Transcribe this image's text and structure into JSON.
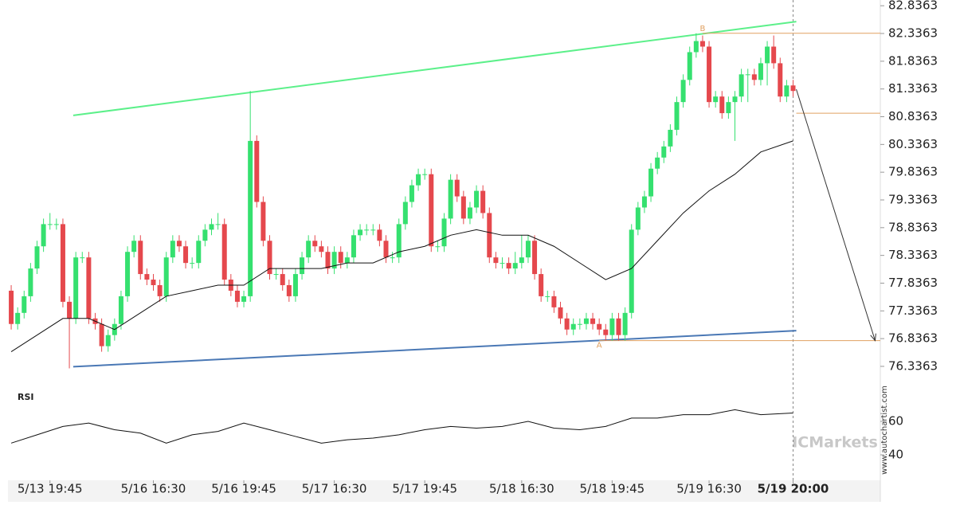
{
  "chart_data": {
    "type": "candlestick",
    "colors": {
      "up": "#35e06f",
      "down": "#e5484d",
      "ma": "#111111",
      "rsi": "#111111",
      "upper": "#5cf08a",
      "lower": "#4a78b5",
      "level": "#e0a060",
      "arrow": "#333333"
    },
    "ylim": [
      76.12,
      82.94
    ],
    "yticks": [
      82.8363,
      82.3363,
      81.8363,
      81.3363,
      80.8363,
      80.3363,
      79.8363,
      79.3363,
      78.8363,
      78.3363,
      77.8363,
      77.3363,
      76.8363,
      76.3363
    ],
    "xlim": [
      -0.5,
      134.5
    ],
    "xlabels": [
      {
        "index": 6,
        "label": "5/13 19:45"
      },
      {
        "index": 22,
        "label": "5/16 16:30"
      },
      {
        "index": 36,
        "label": "5/16 19:45"
      },
      {
        "index": 50,
        "label": "5/17 16:30"
      },
      {
        "index": 64,
        "label": "5/17 19:45"
      },
      {
        "index": 79,
        "label": "5/18 16:30"
      },
      {
        "index": 93,
        "label": "5/18 19:45"
      },
      {
        "index": 108,
        "label": "5/19 16:30"
      },
      {
        "index": 121,
        "label": "5/19 20:00"
      }
    ],
    "open": [
      77.7,
      77.1,
      77.3,
      77.6,
      78.1,
      78.5,
      78.9,
      78.9,
      78.9,
      77.5,
      77.2,
      78.3,
      78.3,
      77.2,
      77.1,
      76.7,
      76.9,
      77.1,
      77.6,
      78.4,
      78.6,
      78.0,
      77.9,
      77.8,
      77.6,
      78.3,
      78.6,
      78.5,
      78.2,
      78.2,
      78.6,
      78.8,
      78.9,
      78.9,
      77.9,
      77.7,
      77.5,
      77.6,
      80.4,
      79.3,
      78.6,
      78.0,
      78.0,
      77.8,
      77.6,
      78.0,
      78.3,
      78.6,
      78.5,
      78.4,
      78.1,
      78.4,
      78.2,
      78.3,
      78.7,
      78.8,
      78.8,
      78.8,
      78.6,
      78.3,
      78.3,
      78.9,
      79.3,
      79.6,
      79.8,
      79.8,
      78.5,
      78.5,
      79.0,
      79.7,
      79.4,
      79.0,
      79.2,
      79.5,
      79.1,
      78.3,
      78.2,
      78.2,
      78.1,
      78.2,
      78.3,
      78.6,
      78.0,
      77.6,
      77.6,
      77.4,
      77.2,
      77.0,
      77.1,
      77.1,
      77.2,
      77.1,
      77.0,
      76.9,
      77.2,
      76.9,
      77.3,
      78.8,
      79.2,
      79.4,
      79.9,
      80.1,
      80.3,
      80.6,
      81.1,
      81.5,
      82.0,
      82.2,
      82.1,
      81.1,
      81.2,
      80.9,
      81.1,
      81.2,
      81.6,
      81.6,
      81.5,
      81.8,
      82.1,
      81.8,
      81.2,
      81.4
    ],
    "high": [
      77.8,
      77.4,
      77.7,
      78.2,
      78.6,
      79.0,
      79.1,
      79.0,
      79.0,
      77.6,
      78.4,
      78.4,
      78.4,
      77.3,
      77.2,
      77.0,
      77.2,
      77.7,
      78.5,
      78.7,
      78.7,
      78.1,
      78.0,
      77.9,
      78.4,
      78.7,
      78.7,
      78.6,
      78.3,
      78.7,
      78.9,
      79.0,
      79.1,
      79.0,
      78.0,
      77.8,
      77.7,
      81.3,
      80.5,
      79.4,
      78.7,
      78.1,
      78.1,
      77.9,
      78.1,
      78.4,
      78.7,
      78.7,
      78.6,
      78.5,
      78.5,
      78.5,
      78.4,
      78.8,
      78.9,
      78.9,
      78.9,
      78.9,
      78.7,
      78.4,
      79.0,
      79.4,
      79.7,
      79.9,
      79.9,
      79.9,
      78.6,
      79.1,
      79.8,
      79.8,
      79.5,
      79.3,
      79.6,
      79.6,
      79.2,
      78.4,
      78.3,
      78.3,
      78.4,
      78.7,
      78.7,
      78.7,
      78.1,
      77.7,
      77.7,
      77.5,
      77.3,
      77.2,
      77.2,
      77.3,
      77.3,
      77.2,
      77.1,
      77.3,
      77.3,
      77.4,
      78.9,
      79.3,
      79.5,
      80.0,
      80.2,
      80.4,
      80.7,
      81.2,
      81.6,
      82.1,
      82.34,
      82.3,
      82.2,
      81.3,
      81.3,
      81.2,
      81.3,
      81.7,
      81.7,
      81.7,
      81.9,
      82.2,
      82.3,
      81.9,
      81.5,
      81.5
    ],
    "low": [
      77.0,
      77.0,
      77.2,
      77.5,
      78.0,
      78.4,
      78.8,
      78.8,
      77.4,
      76.3,
      77.1,
      78.2,
      77.1,
      77.0,
      76.6,
      76.6,
      76.8,
      77.0,
      77.5,
      78.3,
      77.9,
      77.8,
      77.7,
      77.5,
      77.5,
      78.2,
      78.4,
      78.1,
      78.1,
      78.1,
      78.5,
      78.7,
      78.8,
      77.8,
      77.6,
      77.4,
      77.4,
      77.5,
      79.2,
      78.5,
      77.9,
      77.9,
      77.7,
      77.5,
      77.5,
      77.9,
      78.2,
      78.4,
      78.3,
      78.0,
      78.0,
      78.1,
      78.1,
      78.2,
      78.6,
      78.7,
      78.7,
      78.5,
      78.2,
      78.2,
      78.2,
      78.8,
      79.2,
      79.5,
      79.7,
      78.4,
      78.4,
      78.4,
      78.9,
      79.3,
      78.9,
      78.9,
      79.1,
      79.0,
      78.2,
      78.1,
      78.1,
      78.0,
      78.0,
      78.1,
      78.2,
      77.9,
      77.5,
      77.5,
      77.3,
      77.1,
      76.9,
      76.9,
      77.0,
      77.0,
      77.0,
      76.9,
      76.8,
      76.8,
      76.8,
      76.8,
      77.2,
      78.7,
      79.1,
      79.3,
      79.8,
      80.0,
      80.2,
      80.5,
      81.0,
      81.4,
      81.9,
      82.0,
      81.0,
      81.0,
      80.8,
      80.8,
      80.4,
      81.1,
      81.1,
      81.4,
      81.4,
      81.4,
      81.7,
      81.1,
      81.1,
      81.2
    ],
    "close": [
      77.1,
      77.3,
      77.6,
      78.1,
      78.5,
      78.9,
      78.9,
      78.9,
      77.5,
      77.2,
      78.3,
      78.3,
      77.2,
      77.1,
      76.7,
      76.9,
      77.1,
      77.6,
      78.4,
      78.6,
      78.0,
      77.9,
      77.8,
      77.6,
      78.3,
      78.6,
      78.5,
      78.2,
      78.2,
      78.6,
      78.8,
      78.9,
      78.9,
      77.9,
      77.7,
      77.5,
      77.6,
      80.4,
      79.3,
      78.6,
      78.0,
      78.0,
      77.8,
      77.6,
      78.0,
      78.3,
      78.6,
      78.5,
      78.4,
      78.1,
      78.4,
      78.2,
      78.3,
      78.7,
      78.8,
      78.8,
      78.8,
      78.6,
      78.3,
      78.3,
      78.9,
      79.3,
      79.6,
      79.8,
      79.8,
      78.5,
      78.5,
      79.0,
      79.7,
      79.4,
      79.0,
      79.2,
      79.5,
      79.1,
      78.3,
      78.2,
      78.2,
      78.1,
      78.2,
      78.3,
      78.6,
      78.0,
      77.6,
      77.6,
      77.4,
      77.2,
      77.0,
      77.1,
      77.1,
      77.2,
      77.1,
      77.0,
      76.9,
      77.2,
      76.9,
      77.3,
      78.8,
      79.2,
      79.4,
      79.9,
      80.1,
      80.3,
      80.6,
      81.1,
      81.5,
      82.0,
      82.2,
      82.1,
      81.1,
      81.2,
      80.9,
      81.1,
      81.2,
      81.6,
      81.6,
      81.5,
      81.8,
      82.1,
      81.8,
      81.2,
      81.4,
      81.3
    ],
    "ma": {
      "x": [
        0,
        4,
        8,
        12,
        16,
        20,
        24,
        28,
        32,
        36,
        40,
        44,
        48,
        52,
        56,
        60,
        64,
        68,
        72,
        76,
        80,
        84,
        88,
        92,
        96,
        100,
        104,
        108,
        112,
        116,
        121
      ],
      "values": [
        76.6,
        76.9,
        77.2,
        77.2,
        77.0,
        77.3,
        77.6,
        77.7,
        77.8,
        77.8,
        78.1,
        78.1,
        78.1,
        78.2,
        78.2,
        78.4,
        78.5,
        78.7,
        78.8,
        78.7,
        78.7,
        78.5,
        78.2,
        77.9,
        78.1,
        78.6,
        79.1,
        79.5,
        79.8,
        80.2,
        80.4
      ]
    },
    "upper_line": {
      "x": [
        9.6,
        121.5
      ],
      "values": [
        80.86,
        82.55
      ]
    },
    "lower_line": {
      "x": [
        9.6,
        121.5
      ],
      "values": [
        76.33,
        76.98
      ]
    },
    "levels": [
      {
        "label": "B",
        "value": 82.34,
        "start": 107
      },
      {
        "label": "A",
        "value": 76.8,
        "start": 91
      }
    ],
    "level_plain": {
      "value": 80.9,
      "start": 121.5
    },
    "projection": {
      "x": [
        121.5,
        133.7
      ],
      "values": [
        81.33,
        76.8
      ]
    },
    "rsi": {
      "label": "RSI",
      "ylim": [
        26.2,
        78.6
      ],
      "yticks": [
        60,
        40
      ],
      "x": [
        0,
        4,
        8,
        12,
        16,
        20,
        24,
        28,
        32,
        36,
        40,
        44,
        48,
        52,
        56,
        60,
        64,
        68,
        72,
        76,
        80,
        84,
        88,
        92,
        96,
        100,
        104,
        108,
        112,
        116,
        121
      ],
      "values": [
        47,
        52,
        57,
        59,
        55,
        53,
        47,
        52,
        54,
        59,
        55,
        51,
        47,
        49,
        50,
        52,
        55,
        57,
        56,
        57,
        60,
        56,
        55,
        57,
        62,
        62,
        64,
        64,
        67,
        64,
        65
      ]
    },
    "watermark": "ICMarkets",
    "source": "www.autochartist.com"
  }
}
